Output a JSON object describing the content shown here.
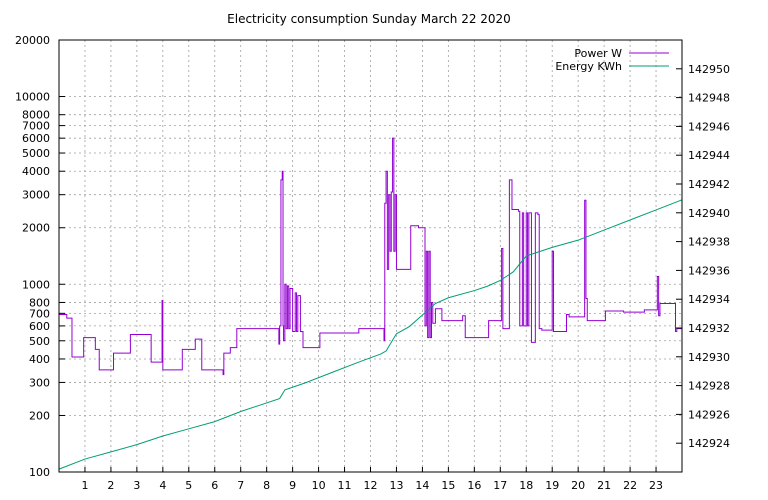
{
  "chart_data": {
    "type": "line",
    "title": "Electricity consumption Sunday March 22 2020",
    "xlabel": "",
    "ylabel": "",
    "y2label": "",
    "xlim": [
      0,
      24
    ],
    "ylim": [
      100,
      20000
    ],
    "y_scale": "log",
    "y2lim": [
      142922,
      142952
    ],
    "grid": true,
    "legend_position": "top-right",
    "x_ticks": [
      "1",
      "2",
      "3",
      "4",
      "5",
      "6",
      "7",
      "8",
      "9",
      "10",
      "11",
      "12",
      "13",
      "14",
      "15",
      "16",
      "17",
      "18",
      "19",
      "20",
      "21",
      "22",
      "23"
    ],
    "y_ticks": [
      {
        "value": 100,
        "label": "100"
      },
      {
        "value": 200,
        "label": "200"
      },
      {
        "value": 300,
        "label": "300"
      },
      {
        "value": 400,
        "label": "400"
      },
      {
        "value": 500,
        "label": "500"
      },
      {
        "value": 600,
        "label": "600"
      },
      {
        "value": 700,
        "label": "700"
      },
      {
        "value": 800,
        "label": "800"
      },
      {
        "value": 1000,
        "label": "1000"
      },
      {
        "value": 2000,
        "label": "2000"
      },
      {
        "value": 3000,
        "label": "3000"
      },
      {
        "value": 4000,
        "label": "4000"
      },
      {
        "value": 5000,
        "label": "5000"
      },
      {
        "value": 6000,
        "label": "6000"
      },
      {
        "value": 7000,
        "label": "7000"
      },
      {
        "value": 8000,
        "label": "8000"
      },
      {
        "value": 10000,
        "label": "10000"
      },
      {
        "value": 20000,
        "label": "20000"
      }
    ],
    "y2_ticks": [
      "142924",
      "142926",
      "142928",
      "142930",
      "142932",
      "142934",
      "142936",
      "142938",
      "142940",
      "142942",
      "142944",
      "142946",
      "142948",
      "142950"
    ],
    "series": [
      {
        "name": "Power W",
        "axis": "y",
        "color": "#9400d3",
        "step": true,
        "points": [
          [
            0,
            690
          ],
          [
            0.25,
            690
          ],
          [
            0.3,
            660
          ],
          [
            0.5,
            410
          ],
          [
            0.9,
            410
          ],
          [
            0.95,
            520
          ],
          [
            1.35,
            520
          ],
          [
            1.4,
            450
          ],
          [
            1.55,
            350
          ],
          [
            2.05,
            350
          ],
          [
            2.1,
            430
          ],
          [
            2.7,
            430
          ],
          [
            2.75,
            540
          ],
          [
            3.5,
            540
          ],
          [
            3.55,
            385
          ],
          [
            3.95,
            385
          ],
          [
            3.97,
            820
          ],
          [
            4.0,
            350
          ],
          [
            4.7,
            350
          ],
          [
            4.75,
            450
          ],
          [
            5.2,
            450
          ],
          [
            5.25,
            510
          ],
          [
            5.45,
            510
          ],
          [
            5.5,
            350
          ],
          [
            6.3,
            350
          ],
          [
            6.32,
            330
          ],
          [
            6.35,
            430
          ],
          [
            6.55,
            430
          ],
          [
            6.6,
            460
          ],
          [
            6.8,
            460
          ],
          [
            6.85,
            580
          ],
          [
            8.45,
            580
          ],
          [
            8.47,
            480
          ],
          [
            8.5,
            600
          ],
          [
            8.55,
            3600
          ],
          [
            8.6,
            4000
          ],
          [
            8.63,
            600
          ],
          [
            8.65,
            500
          ],
          [
            8.7,
            1000
          ],
          [
            8.75,
            580
          ],
          [
            8.8,
            980
          ],
          [
            8.85,
            580
          ],
          [
            8.9,
            950
          ],
          [
            9.0,
            560
          ],
          [
            9.1,
            900
          ],
          [
            9.15,
            560
          ],
          [
            9.2,
            870
          ],
          [
            9.3,
            560
          ],
          [
            9.4,
            460
          ],
          [
            9.5,
            460
          ],
          [
            9.6,
            460
          ],
          [
            10.0,
            460
          ],
          [
            10.05,
            550
          ],
          [
            11.5,
            550
          ],
          [
            11.55,
            580
          ],
          [
            12.5,
            580
          ],
          [
            12.52,
            500
          ],
          [
            12.55,
            2700
          ],
          [
            12.6,
            4000
          ],
          [
            12.65,
            1200
          ],
          [
            12.7,
            3000
          ],
          [
            12.75,
            1500
          ],
          [
            12.8,
            3100
          ],
          [
            12.85,
            6000
          ],
          [
            12.9,
            1500
          ],
          [
            12.95,
            3000
          ],
          [
            13.0,
            1200
          ],
          [
            13.5,
            1200
          ],
          [
            13.55,
            2050
          ],
          [
            13.8,
            2050
          ],
          [
            13.85,
            2000
          ],
          [
            14.05,
            2000
          ],
          [
            14.1,
            600
          ],
          [
            14.15,
            1500
          ],
          [
            14.2,
            520
          ],
          [
            14.25,
            1500
          ],
          [
            14.3,
            520
          ],
          [
            14.35,
            800
          ],
          [
            14.4,
            620
          ],
          [
            14.5,
            740
          ],
          [
            14.7,
            740
          ],
          [
            14.75,
            640
          ],
          [
            15.5,
            640
          ],
          [
            15.55,
            680
          ],
          [
            15.6,
            680
          ],
          [
            15.65,
            520
          ],
          [
            16.5,
            520
          ],
          [
            16.55,
            640
          ],
          [
            17.0,
            640
          ],
          [
            17.05,
            1550
          ],
          [
            17.1,
            580
          ],
          [
            17.3,
            580
          ],
          [
            17.35,
            3600
          ],
          [
            17.45,
            2500
          ],
          [
            17.7,
            2450
          ],
          [
            17.75,
            600
          ],
          [
            17.8,
            600
          ],
          [
            17.85,
            2400
          ],
          [
            17.9,
            600
          ],
          [
            18.0,
            2400
          ],
          [
            18.05,
            600
          ],
          [
            18.1,
            2400
          ],
          [
            18.2,
            490
          ],
          [
            18.3,
            490
          ],
          [
            18.35,
            2400
          ],
          [
            18.45,
            2350
          ],
          [
            18.5,
            580
          ],
          [
            18.6,
            570
          ],
          [
            18.95,
            570
          ],
          [
            19.0,
            1500
          ],
          [
            19.05,
            560
          ],
          [
            19.5,
            560
          ],
          [
            19.55,
            690
          ],
          [
            19.65,
            670
          ],
          [
            20.2,
            670
          ],
          [
            20.25,
            2800
          ],
          [
            20.3,
            840
          ],
          [
            20.35,
            640
          ],
          [
            21.0,
            640
          ],
          [
            21.05,
            720
          ],
          [
            21.7,
            720
          ],
          [
            21.75,
            710
          ],
          [
            22.5,
            710
          ],
          [
            22.55,
            730
          ],
          [
            23.0,
            730
          ],
          [
            23.05,
            1100
          ],
          [
            23.1,
            680
          ],
          [
            23.15,
            790
          ],
          [
            23.7,
            790
          ],
          [
            23.75,
            560
          ],
          [
            23.8,
            580
          ],
          [
            24.0,
            580
          ]
        ]
      },
      {
        "name": "Energy KWh",
        "axis": "y2",
        "color": "#009e73",
        "step": false,
        "points": [
          [
            0,
            142922.2
          ],
          [
            1,
            142922.9
          ],
          [
            2,
            142923.4
          ],
          [
            3,
            142923.9
          ],
          [
            4,
            142924.5
          ],
          [
            5,
            142925.0
          ],
          [
            6,
            142925.5
          ],
          [
            7,
            142926.2
          ],
          [
            8.5,
            142927.1
          ],
          [
            8.7,
            142927.7
          ],
          [
            9.5,
            142928.2
          ],
          [
            10.5,
            142928.9
          ],
          [
            11.5,
            142929.6
          ],
          [
            12.4,
            142930.2
          ],
          [
            12.6,
            142930.4
          ],
          [
            13.0,
            142931.6
          ],
          [
            13.5,
            142932.1
          ],
          [
            14.0,
            142932.9
          ],
          [
            14.5,
            142933.7
          ],
          [
            15.0,
            142934.1
          ],
          [
            16.0,
            142934.6
          ],
          [
            16.5,
            142934.9
          ],
          [
            17.0,
            142935.3
          ],
          [
            17.5,
            142935.9
          ],
          [
            18.0,
            142937.0
          ],
          [
            19.0,
            142937.6
          ],
          [
            20.0,
            142938.1
          ],
          [
            21.0,
            142938.8
          ],
          [
            22.0,
            142939.5
          ],
          [
            23.0,
            142940.2
          ],
          [
            24.0,
            142940.9
          ]
        ]
      }
    ]
  }
}
